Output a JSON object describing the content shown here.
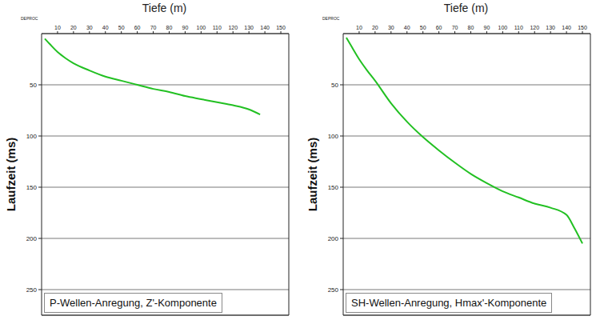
{
  "chart_data": [
    {
      "type": "line",
      "title": "P-Wellen-Anregung, Z'-Komponente",
      "x_label": "Tiefe (m)",
      "y_label": "Laufzeit (ms)",
      "annotations": [
        "DEPROC"
      ],
      "x": [
        2,
        5,
        10,
        15,
        20,
        30,
        40,
        50,
        60,
        70,
        80,
        90,
        100,
        110,
        120,
        130,
        137
      ],
      "values": [
        5,
        10,
        18,
        24,
        29,
        36,
        42,
        46,
        50,
        54,
        57,
        61,
        64,
        67,
        70,
        74,
        79
      ],
      "color": "#22c022",
      "xlim": [
        0,
        155
      ],
      "ylim": [
        0,
        275
      ],
      "xticks": [
        10,
        20,
        30,
        40,
        50,
        60,
        70,
        80,
        90,
        100,
        110,
        120,
        130,
        140,
        150
      ],
      "yticks": [
        50,
        100,
        150,
        200,
        250
      ],
      "grid": true
    },
    {
      "type": "line",
      "title": "SH-Wellen-Anregung, Hmax'-Komponente",
      "x_label": "Tiefe (m)",
      "y_label": "Laufzeit (ms)",
      "annotations": [
        "DEPROC"
      ],
      "x": [
        2,
        5,
        10,
        15,
        20,
        30,
        40,
        50,
        60,
        70,
        80,
        90,
        100,
        110,
        120,
        130,
        140,
        145,
        150
      ],
      "values": [
        4,
        12,
        25,
        36,
        46,
        68,
        86,
        101,
        114,
        126,
        137,
        146,
        154,
        160,
        166,
        170,
        177,
        190,
        205
      ],
      "color": "#22c022",
      "xlim": [
        0,
        155
      ],
      "ylim": [
        0,
        275
      ],
      "xticks": [
        10,
        20,
        30,
        40,
        50,
        60,
        70,
        80,
        90,
        100,
        110,
        120,
        130,
        140,
        150
      ],
      "yticks": [
        50,
        100,
        150,
        200,
        250
      ],
      "grid": true
    }
  ]
}
